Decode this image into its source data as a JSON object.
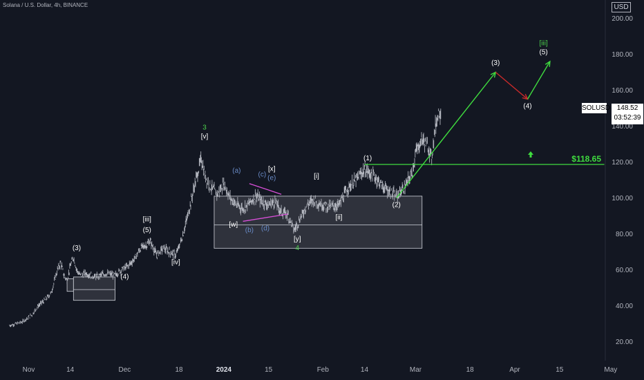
{
  "header": {
    "title": "Solana / U.S. Dollar, 4h, BINANCE",
    "currency": "USD"
  },
  "price_label": {
    "symbol": "SOLUSD",
    "price": "148.52",
    "countdown": "03:52:39"
  },
  "colors": {
    "background": "#131722",
    "candle": "#b2b5be",
    "green": "#3fdc3f",
    "red": "#c82a2a",
    "pink": "#d94fd9",
    "blue": "#5b7fbf",
    "box": "#3a3c45"
  },
  "chart_data": {
    "type": "line",
    "title": "Solana / U.S. Dollar, 4h, BINANCE",
    "xlabel": "",
    "ylabel": "",
    "ylim": [
      10,
      205
    ],
    "xlim": [
      "2023-10-26",
      "2024-05-05"
    ],
    "y_ticks": [
      "20.00",
      "40.00",
      "60.00",
      "80.00",
      "100.00",
      "120.00",
      "140.00",
      "160.00",
      "180.00",
      "200.00"
    ],
    "x_ticks": [
      {
        "date": "2023-11-01",
        "label": "Nov"
      },
      {
        "date": "2023-11-14",
        "label": "14"
      },
      {
        "date": "2023-12-01",
        "label": "Dec"
      },
      {
        "date": "2023-12-18",
        "label": "18"
      },
      {
        "date": "2024-01-01",
        "label": "2024"
      },
      {
        "date": "2024-01-15",
        "label": "15"
      },
      {
        "date": "2024-02-01",
        "label": "Feb"
      },
      {
        "date": "2024-02-14",
        "label": "14"
      },
      {
        "date": "2024-03-01",
        "label": "Mar"
      },
      {
        "date": "2024-03-18",
        "label": "18"
      },
      {
        "date": "2024-04-01",
        "label": "Apr"
      },
      {
        "date": "2024-04-15",
        "label": "15"
      },
      {
        "date": "2024-05-01",
        "label": "May"
      }
    ],
    "series": [
      {
        "values": [
          [
            "2023-10-26",
            29
          ],
          [
            "2023-10-30",
            31
          ],
          [
            "2023-11-02",
            35
          ],
          [
            "2023-11-04",
            40
          ],
          [
            "2023-11-06",
            43
          ],
          [
            "2023-11-08",
            47
          ],
          [
            "2023-11-10",
            60
          ],
          [
            "2023-11-11",
            64
          ],
          [
            "2023-11-12",
            57
          ],
          [
            "2023-11-13",
            54
          ],
          [
            "2023-11-14",
            62
          ],
          [
            "2023-11-15",
            67
          ],
          [
            "2023-11-16",
            60
          ],
          [
            "2023-11-17",
            57
          ],
          [
            "2023-11-19",
            58
          ],
          [
            "2023-11-22",
            56
          ],
          [
            "2023-11-25",
            58
          ],
          [
            "2023-11-28",
            57
          ],
          [
            "2023-11-30",
            60
          ],
          [
            "2023-12-02",
            62
          ],
          [
            "2023-12-04",
            66
          ],
          [
            "2023-12-06",
            72
          ],
          [
            "2023-12-08",
            74
          ],
          [
            "2023-12-09",
            76
          ],
          [
            "2023-12-11",
            68
          ],
          [
            "2023-12-13",
            72
          ],
          [
            "2023-12-15",
            70
          ],
          [
            "2023-12-17",
            68
          ],
          [
            "2023-12-19",
            78
          ],
          [
            "2023-12-21",
            92
          ],
          [
            "2023-12-23",
            108
          ],
          [
            "2023-12-25",
            122
          ],
          [
            "2023-12-26",
            113
          ],
          [
            "2023-12-28",
            106
          ],
          [
            "2023-12-30",
            102
          ],
          [
            "2024-01-01",
            108
          ],
          [
            "2024-01-03",
            100
          ],
          [
            "2024-01-05",
            96
          ],
          [
            "2024-01-07",
            94
          ],
          [
            "2024-01-09",
            97
          ],
          [
            "2024-01-11",
            101
          ],
          [
            "2024-01-13",
            98
          ],
          [
            "2024-01-15",
            96
          ],
          [
            "2024-01-17",
            98
          ],
          [
            "2024-01-19",
            92
          ],
          [
            "2024-01-21",
            91
          ],
          [
            "2024-01-23",
            82
          ],
          [
            "2024-01-25",
            89
          ],
          [
            "2024-01-27",
            96
          ],
          [
            "2024-01-29",
            99
          ],
          [
            "2024-01-31",
            97
          ],
          [
            "2024-02-03",
            95
          ],
          [
            "2024-02-06",
            96
          ],
          [
            "2024-02-09",
            106
          ],
          [
            "2024-02-12",
            111
          ],
          [
            "2024-02-14",
            116
          ],
          [
            "2024-02-17",
            112
          ],
          [
            "2024-02-20",
            106
          ],
          [
            "2024-02-23",
            102
          ],
          [
            "2024-02-24",
            101
          ],
          [
            "2024-02-27",
            107
          ],
          [
            "2024-02-29",
            115
          ],
          [
            "2024-03-01",
            125
          ],
          [
            "2024-03-03",
            133
          ],
          [
            "2024-03-05",
            128
          ],
          [
            "2024-03-06",
            122
          ],
          [
            "2024-03-07",
            138
          ],
          [
            "2024-03-08",
            147
          ],
          [
            "2024-03-09",
            148.52
          ]
        ]
      }
    ],
    "zones": [
      {
        "x0": "2023-11-13",
        "x1": "2023-11-15",
        "y0": 48,
        "y1": 55
      },
      {
        "x0": "2023-11-15",
        "x1": "2023-11-28",
        "y0": 43,
        "y1": 56
      },
      {
        "x0": "2023-12-29",
        "x1": "2024-03-03",
        "y0": 72,
        "y1": 101
      }
    ],
    "zone_lines": [
      {
        "x0": "2023-11-15",
        "x1": "2023-11-28",
        "y": 49
      },
      {
        "x0": "2023-12-29",
        "x1": "2024-03-03",
        "y": 85
      }
    ],
    "support": {
      "y": 118.65,
      "x0": "2024-02-14",
      "x1": "2024-04-29",
      "label": "$118.65"
    },
    "projection": [
      {
        "from": [
          "2024-02-24",
          100
        ],
        "to": [
          "2024-03-26",
          170
        ],
        "color": "green"
      },
      {
        "from": [
          "2024-03-26",
          170
        ],
        "to": [
          "2024-04-05",
          155
        ],
        "color": "red"
      },
      {
        "from": [
          "2024-04-05",
          155
        ],
        "to": [
          "2024-04-12",
          176
        ],
        "color": "green"
      }
    ],
    "triangle": [
      {
        "from": [
          "2024-01-09",
          108
        ],
        "to": [
          "2024-01-19",
          102
        ]
      },
      {
        "from": [
          "2024-01-07",
          87
        ],
        "to": [
          "2024-01-21",
          91
        ]
      }
    ],
    "annotations": [
      {
        "text": "3",
        "date": "2023-12-26",
        "y": 138,
        "color": "green"
      },
      {
        "text": "[v]",
        "date": "2023-12-26",
        "y": 133,
        "color": "white"
      },
      {
        "text": "(a)",
        "date": "2024-01-05",
        "y": 114,
        "color": "blue"
      },
      {
        "text": "(c)",
        "date": "2024-01-13",
        "y": 112,
        "color": "blue"
      },
      {
        "text": "[x]",
        "date": "2024-01-16",
        "y": 115,
        "color": "white"
      },
      {
        "text": "(e)",
        "date": "2024-01-16",
        "y": 110,
        "color": "blue"
      },
      {
        "text": "[i]",
        "date": "2024-01-30",
        "y": 111,
        "color": "white"
      },
      {
        "text": "(1)",
        "date": "2024-02-15",
        "y": 121,
        "color": "white"
      },
      {
        "text": "[w]",
        "date": "2024-01-04",
        "y": 84,
        "color": "white"
      },
      {
        "text": "(b)",
        "date": "2024-01-09",
        "y": 81,
        "color": "blue"
      },
      {
        "text": "(d)",
        "date": "2024-01-14",
        "y": 82,
        "color": "blue"
      },
      {
        "text": "[ii]",
        "date": "2024-02-06",
        "y": 88,
        "color": "white"
      },
      {
        "text": "(2)",
        "date": "2024-02-24",
        "y": 95,
        "color": "white"
      },
      {
        "text": "[y]",
        "date": "2024-01-24",
        "y": 76,
        "color": "white"
      },
      {
        "text": "4",
        "date": "2024-01-24",
        "y": 71,
        "color": "green"
      },
      {
        "text": "[iii]",
        "date": "2023-12-08",
        "y": 87,
        "color": "white"
      },
      {
        "text": "(5)",
        "date": "2023-12-08",
        "y": 81,
        "color": "white"
      },
      {
        "text": "(3)",
        "date": "2023-11-16",
        "y": 71,
        "color": "white"
      },
      {
        "text": "[iv]",
        "date": "2023-12-17",
        "y": 63,
        "color": "white"
      },
      {
        "text": "(4)",
        "date": "2023-12-01",
        "y": 55,
        "color": "white"
      },
      {
        "text": "(3)",
        "date": "2024-03-26",
        "y": 174,
        "color": "white"
      },
      {
        "text": "(4)",
        "date": "2024-04-05",
        "y": 150,
        "color": "white"
      },
      {
        "text": "[iii]",
        "date": "2024-04-10",
        "y": 185,
        "color": "green"
      },
      {
        "text": "(5)",
        "date": "2024-04-10",
        "y": 180,
        "color": "white"
      }
    ]
  }
}
